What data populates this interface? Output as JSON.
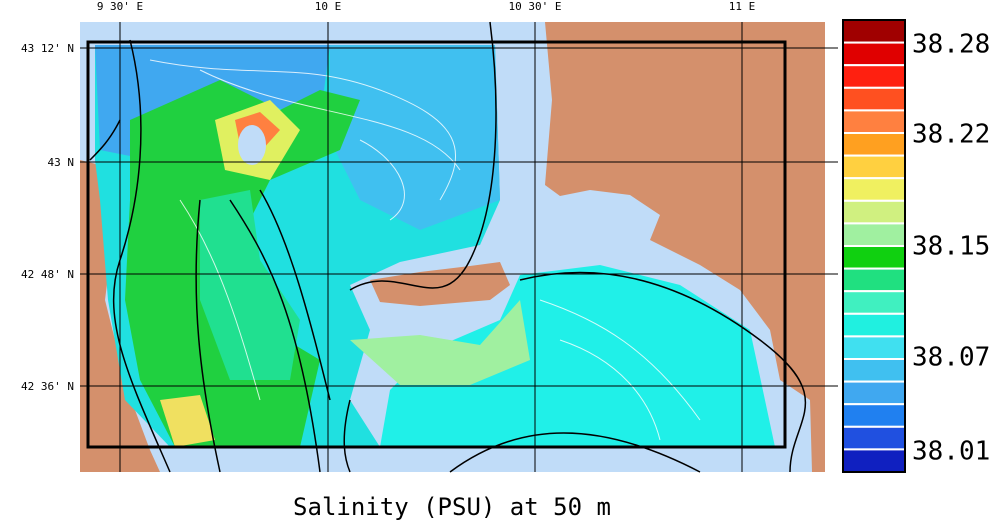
{
  "title": "Salinity (PSU) at 50 m",
  "map": {
    "lon_labels": [
      "9 30' E",
      "10 E",
      "10 30' E",
      "11 E"
    ],
    "lat_labels": [
      "43 12' N",
      "43 N",
      "42 48' N",
      "42 36' N"
    ]
  },
  "colorbar": {
    "labels": [
      "38.28",
      "38.22",
      "38.15",
      "38.07",
      "38.01"
    ],
    "colors": [
      "#a00000",
      "#e00000",
      "#ff2010",
      "#ff5020",
      "#ff8040",
      "#ffa020",
      "#ffd040",
      "#f0f060",
      "#d0f080",
      "#a0f0a0",
      "#10d010",
      "#20e080",
      "#40f0c0",
      "#20f0e0",
      "#40e0f0",
      "#40c0f0",
      "#40a8f0",
      "#2080f0",
      "#2050e0",
      "#1020c0"
    ]
  }
}
